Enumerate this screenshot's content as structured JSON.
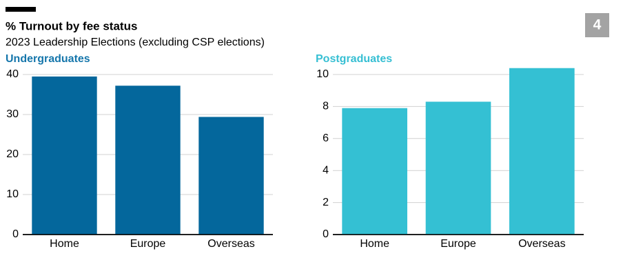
{
  "header": {
    "title": "% Turnout by fee status",
    "subtitle": "2023 Leadership Elections (excluding CSP elections)",
    "badge": "4"
  },
  "chart_data": [
    {
      "type": "bar",
      "title": "Undergraduates",
      "title_color": "#1576ab",
      "color": "#04679c",
      "categories": [
        "Home",
        "Europe",
        "Overseas"
      ],
      "values": [
        39.5,
        37.2,
        29.4
      ],
      "ylim": [
        0,
        40
      ],
      "yticks": [
        0,
        10,
        20,
        30,
        40
      ],
      "grid": true
    },
    {
      "type": "bar",
      "title": "Postgraduates",
      "title_color": "#36bfd3",
      "color": "#34c0d3",
      "categories": [
        "Home",
        "Europe",
        "Overseas"
      ],
      "values": [
        7.9,
        8.3,
        10.4
      ],
      "ylim": [
        0,
        10
      ],
      "yticks": [
        0,
        2,
        4,
        6,
        8,
        10
      ],
      "grid": true
    }
  ]
}
